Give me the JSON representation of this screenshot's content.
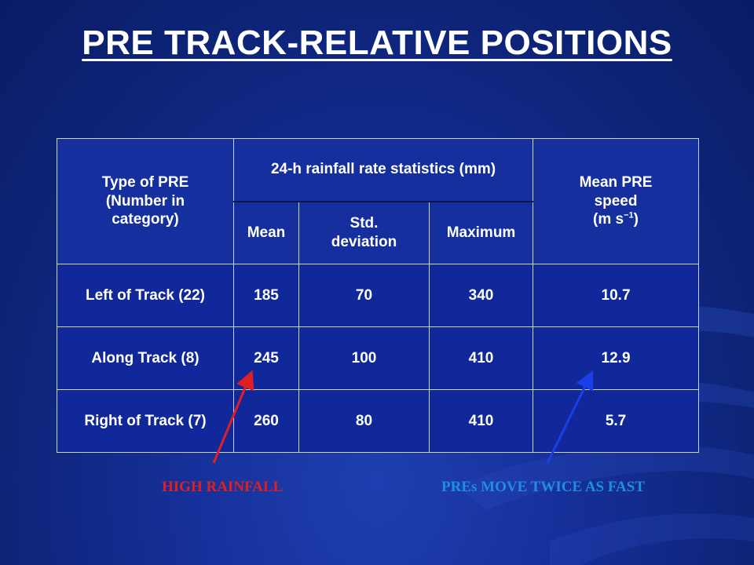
{
  "title": "PRE TRACK-RELATIVE POSITIONS",
  "table": {
    "header_type": [
      "Type of PRE",
      "(Number in",
      "category)"
    ],
    "header_stats": "24-h rainfall rate statistics (mm)",
    "header_speed": [
      "Mean PRE",
      "speed",
      "(m s",
      "−1",
      ")"
    ],
    "sub_mean": "Mean",
    "sub_std": [
      "Std.",
      "deviation"
    ],
    "sub_max": "Maximum",
    "rows": [
      {
        "type": "Left of Track (22)",
        "mean": "185",
        "std": "70",
        "max": "340",
        "speed": "10.7"
      },
      {
        "type": "Along Track (8)",
        "mean": "245",
        "std": "100",
        "max": "410",
        "speed": "12.9"
      },
      {
        "type": "Right of Track (7)",
        "mean": "260",
        "std": "80",
        "max": "410",
        "speed": "5.7"
      }
    ]
  },
  "annotations": {
    "red_label": "HIGH RAINFALL",
    "blue_label": "PREs MOVE TWICE AS FAST",
    "red_color": "#e02020",
    "blue_color": "#1e8fe0"
  }
}
